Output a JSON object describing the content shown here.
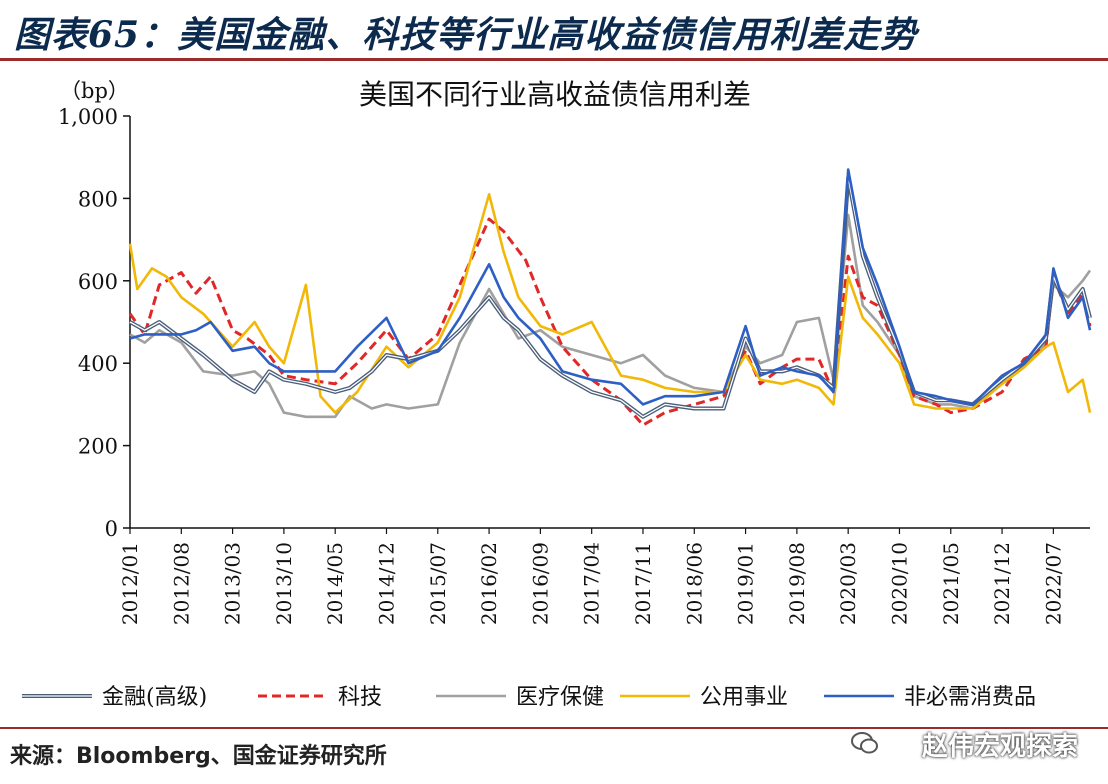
{
  "figure_title": "图表65：美国金融、科技等行业高收益债信用利差走势",
  "source": "来源：Bloomberg、国金证券研究所",
  "watermark": "赵伟宏观探索",
  "chart_data": {
    "type": "line",
    "title": "美国不同行业高收益债信用利差",
    "ylabel": "（bp）",
    "ylim": [
      0,
      1000
    ],
    "yticks": [
      0,
      200,
      400,
      600,
      800,
      1000
    ],
    "ytick_labels": [
      "0",
      "200",
      "400",
      "600",
      "800",
      "1,000"
    ],
    "xtick_labels": [
      "2012/01",
      "2012/08",
      "2013/03",
      "2013/10",
      "2014/05",
      "2014/12",
      "2015/07",
      "2016/02",
      "2016/09",
      "2017/04",
      "2017/11",
      "2018/06",
      "2019/01",
      "2019/08",
      "2020/03",
      "2020/10",
      "2021/05",
      "2021/12",
      "2022/07"
    ],
    "x_range": [
      "2012/01",
      "2022/12"
    ],
    "legend": "bottom",
    "grid": false,
    "series": [
      {
        "name": "金融(高级)",
        "color": "#4a5e7a",
        "style": "double",
        "points": [
          [
            "2012/01",
            500
          ],
          [
            "2012/03",
            480
          ],
          [
            "2012/05",
            500
          ],
          [
            "2012/08",
            460
          ],
          [
            "2012/11",
            420
          ],
          [
            "2013/03",
            360
          ],
          [
            "2013/06",
            330
          ],
          [
            "2013/08",
            380
          ],
          [
            "2013/10",
            360
          ],
          [
            "2014/01",
            350
          ],
          [
            "2014/05",
            330
          ],
          [
            "2014/07",
            340
          ],
          [
            "2014/10",
            380
          ],
          [
            "2014/12",
            420
          ],
          [
            "2015/03",
            410
          ],
          [
            "2015/07",
            430
          ],
          [
            "2015/10",
            480
          ],
          [
            "2016/02",
            560
          ],
          [
            "2016/04",
            510
          ],
          [
            "2016/06",
            480
          ],
          [
            "2016/09",
            410
          ],
          [
            "2016/12",
            370
          ],
          [
            "2017/04",
            330
          ],
          [
            "2017/08",
            310
          ],
          [
            "2017/11",
            270
          ],
          [
            "2018/02",
            300
          ],
          [
            "2018/06",
            290
          ],
          [
            "2018/10",
            290
          ],
          [
            "2019/01",
            460
          ],
          [
            "2019/03",
            380
          ],
          [
            "2019/06",
            380
          ],
          [
            "2019/08",
            390
          ],
          [
            "2019/11",
            370
          ],
          [
            "2020/01",
            340
          ],
          [
            "2020/03",
            850
          ],
          [
            "2020/05",
            660
          ],
          [
            "2020/07",
            560
          ],
          [
            "2020/10",
            430
          ],
          [
            "2020/12",
            330
          ],
          [
            "2021/03",
            310
          ],
          [
            "2021/05",
            310
          ],
          [
            "2021/08",
            300
          ],
          [
            "2021/12",
            360
          ],
          [
            "2022/03",
            400
          ],
          [
            "2022/06",
            460
          ],
          [
            "2022/07",
            610
          ],
          [
            "2022/09",
            530
          ],
          [
            "2022/11",
            580
          ],
          [
            "2022/12",
            510
          ]
        ]
      },
      {
        "name": "科技",
        "color": "#e02828",
        "style": "dashed",
        "points": [
          [
            "2012/01",
            520
          ],
          [
            "2012/03",
            470
          ],
          [
            "2012/05",
            590
          ],
          [
            "2012/08",
            620
          ],
          [
            "2012/10",
            570
          ],
          [
            "2012/12",
            610
          ],
          [
            "2013/03",
            480
          ],
          [
            "2013/05",
            460
          ],
          [
            "2013/08",
            420
          ],
          [
            "2013/10",
            370
          ],
          [
            "2014/01",
            360
          ],
          [
            "2014/05",
            350
          ],
          [
            "2014/08",
            400
          ],
          [
            "2014/12",
            480
          ],
          [
            "2015/03",
            410
          ],
          [
            "2015/07",
            470
          ],
          [
            "2015/10",
            590
          ],
          [
            "2016/02",
            750
          ],
          [
            "2016/04",
            720
          ],
          [
            "2016/07",
            650
          ],
          [
            "2016/09",
            560
          ],
          [
            "2016/12",
            440
          ],
          [
            "2017/04",
            360
          ],
          [
            "2017/08",
            310
          ],
          [
            "2017/11",
            250
          ],
          [
            "2018/02",
            280
          ],
          [
            "2018/06",
            300
          ],
          [
            "2018/10",
            320
          ],
          [
            "2019/01",
            430
          ],
          [
            "2019/03",
            350
          ],
          [
            "2019/06",
            390
          ],
          [
            "2019/08",
            410
          ],
          [
            "2019/11",
            410
          ],
          [
            "2020/01",
            330
          ],
          [
            "2020/03",
            660
          ],
          [
            "2020/05",
            560
          ],
          [
            "2020/07",
            540
          ],
          [
            "2020/10",
            420
          ],
          [
            "2020/12",
            320
          ],
          [
            "2021/03",
            300
          ],
          [
            "2021/05",
            280
          ],
          [
            "2021/08",
            290
          ],
          [
            "2021/12",
            330
          ],
          [
            "2022/03",
            410
          ],
          [
            "2022/06",
            440
          ],
          [
            "2022/07",
            610
          ],
          [
            "2022/09",
            520
          ],
          [
            "2022/11",
            570
          ],
          [
            "2022/12",
            490
          ]
        ]
      },
      {
        "name": "医疗保健",
        "color": "#a0a0a0",
        "style": "solid",
        "points": [
          [
            "2012/01",
            470
          ],
          [
            "2012/03",
            450
          ],
          [
            "2012/05",
            480
          ],
          [
            "2012/08",
            450
          ],
          [
            "2012/11",
            380
          ],
          [
            "2013/03",
            370
          ],
          [
            "2013/06",
            380
          ],
          [
            "2013/08",
            350
          ],
          [
            "2013/10",
            280
          ],
          [
            "2014/01",
            270
          ],
          [
            "2014/05",
            270
          ],
          [
            "2014/07",
            320
          ],
          [
            "2014/10",
            290
          ],
          [
            "2014/12",
            300
          ],
          [
            "2015/03",
            290
          ],
          [
            "2015/07",
            300
          ],
          [
            "2015/10",
            450
          ],
          [
            "2016/02",
            580
          ],
          [
            "2016/04",
            520
          ],
          [
            "2016/06",
            460
          ],
          [
            "2016/09",
            480
          ],
          [
            "2016/12",
            440
          ],
          [
            "2017/04",
            420
          ],
          [
            "2017/08",
            400
          ],
          [
            "2017/11",
            420
          ],
          [
            "2018/02",
            370
          ],
          [
            "2018/06",
            340
          ],
          [
            "2018/10",
            330
          ],
          [
            "2019/01",
            440
          ],
          [
            "2019/03",
            400
          ],
          [
            "2019/06",
            420
          ],
          [
            "2019/08",
            500
          ],
          [
            "2019/11",
            510
          ],
          [
            "2020/01",
            360
          ],
          [
            "2020/03",
            760
          ],
          [
            "2020/05",
            540
          ],
          [
            "2020/07",
            500
          ],
          [
            "2020/10",
            420
          ],
          [
            "2020/12",
            320
          ],
          [
            "2021/03",
            300
          ],
          [
            "2021/05",
            300
          ],
          [
            "2021/08",
            290
          ],
          [
            "2021/12",
            350
          ],
          [
            "2022/03",
            390
          ],
          [
            "2022/06",
            450
          ],
          [
            "2022/07",
            590
          ],
          [
            "2022/09",
            560
          ],
          [
            "2022/11",
            600
          ],
          [
            "2022/12",
            625
          ]
        ]
      },
      {
        "name": "公用事业",
        "color": "#f2b807",
        "style": "solid",
        "points": [
          [
            "2012/01",
            690
          ],
          [
            "2012/02",
            580
          ],
          [
            "2012/04",
            630
          ],
          [
            "2012/06",
            610
          ],
          [
            "2012/08",
            560
          ],
          [
            "2012/11",
            520
          ],
          [
            "2013/03",
            440
          ],
          [
            "2013/06",
            500
          ],
          [
            "2013/08",
            440
          ],
          [
            "2013/10",
            400
          ],
          [
            "2014/01",
            590
          ],
          [
            "2014/03",
            320
          ],
          [
            "2014/05",
            280
          ],
          [
            "2014/08",
            330
          ],
          [
            "2014/12",
            440
          ],
          [
            "2015/03",
            390
          ],
          [
            "2015/07",
            450
          ],
          [
            "2015/10",
            560
          ],
          [
            "2016/02",
            810
          ],
          [
            "2016/04",
            670
          ],
          [
            "2016/06",
            560
          ],
          [
            "2016/09",
            490
          ],
          [
            "2016/12",
            470
          ],
          [
            "2017/04",
            500
          ],
          [
            "2017/08",
            370
          ],
          [
            "2017/11",
            360
          ],
          [
            "2018/02",
            340
          ],
          [
            "2018/06",
            330
          ],
          [
            "2018/10",
            330
          ],
          [
            "2019/01",
            420
          ],
          [
            "2019/03",
            360
          ],
          [
            "2019/06",
            350
          ],
          [
            "2019/08",
            360
          ],
          [
            "2019/11",
            340
          ],
          [
            "2020/01",
            300
          ],
          [
            "2020/03",
            610
          ],
          [
            "2020/05",
            510
          ],
          [
            "2020/07",
            470
          ],
          [
            "2020/10",
            400
          ],
          [
            "2020/12",
            300
          ],
          [
            "2021/03",
            290
          ],
          [
            "2021/05",
            290
          ],
          [
            "2021/08",
            290
          ],
          [
            "2021/12",
            350
          ],
          [
            "2022/03",
            390
          ],
          [
            "2022/06",
            440
          ],
          [
            "2022/07",
            450
          ],
          [
            "2022/09",
            330
          ],
          [
            "2022/11",
            360
          ],
          [
            "2022/12",
            280
          ]
        ]
      },
      {
        "name": "非必需消费品",
        "color": "#2d5fc4",
        "style": "solid",
        "points": [
          [
            "2012/01",
            460
          ],
          [
            "2012/03",
            470
          ],
          [
            "2012/05",
            470
          ],
          [
            "2012/08",
            470
          ],
          [
            "2012/10",
            480
          ],
          [
            "2012/12",
            500
          ],
          [
            "2013/03",
            430
          ],
          [
            "2013/06",
            440
          ],
          [
            "2013/08",
            400
          ],
          [
            "2013/10",
            380
          ],
          [
            "2014/01",
            380
          ],
          [
            "2014/05",
            380
          ],
          [
            "2014/08",
            440
          ],
          [
            "2014/12",
            510
          ],
          [
            "2015/03",
            400
          ],
          [
            "2015/07",
            430
          ],
          [
            "2015/10",
            510
          ],
          [
            "2016/02",
            640
          ],
          [
            "2016/04",
            560
          ],
          [
            "2016/06",
            510
          ],
          [
            "2016/09",
            460
          ],
          [
            "2016/12",
            380
          ],
          [
            "2017/04",
            360
          ],
          [
            "2017/08",
            350
          ],
          [
            "2017/11",
            300
          ],
          [
            "2018/02",
            320
          ],
          [
            "2018/06",
            320
          ],
          [
            "2018/10",
            330
          ],
          [
            "2019/01",
            490
          ],
          [
            "2019/03",
            370
          ],
          [
            "2019/06",
            390
          ],
          [
            "2019/08",
            380
          ],
          [
            "2019/11",
            370
          ],
          [
            "2020/01",
            330
          ],
          [
            "2020/03",
            870
          ],
          [
            "2020/05",
            680
          ],
          [
            "2020/07",
            590
          ],
          [
            "2020/10",
            440
          ],
          [
            "2020/12",
            330
          ],
          [
            "2021/03",
            320
          ],
          [
            "2021/05",
            310
          ],
          [
            "2021/08",
            300
          ],
          [
            "2021/12",
            370
          ],
          [
            "2022/03",
            400
          ],
          [
            "2022/06",
            470
          ],
          [
            "2022/07",
            630
          ],
          [
            "2022/09",
            510
          ],
          [
            "2022/11",
            560
          ],
          [
            "2022/12",
            480
          ]
        ]
      }
    ]
  }
}
